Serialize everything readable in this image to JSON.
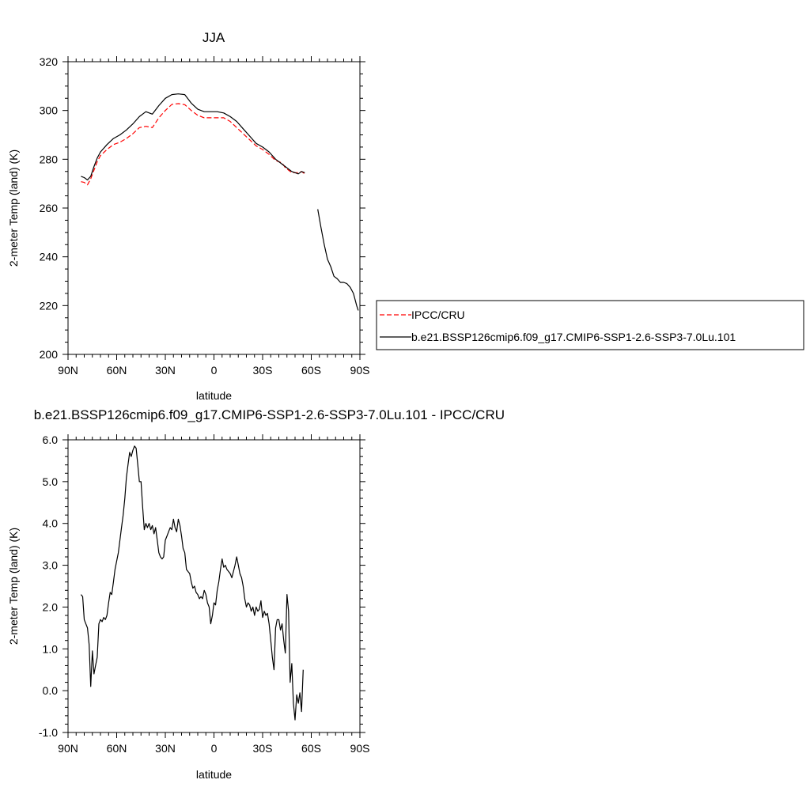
{
  "chart_data": [
    {
      "type": "line",
      "title": "JJA",
      "xlabel": "latitude",
      "ylabel": "2-meter Temp (land) (K)",
      "xlim": [
        90,
        -90
      ],
      "ylim": [
        200,
        320
      ],
      "x_tick_values": [
        90,
        60,
        30,
        0,
        -30,
        -60,
        -90
      ],
      "x_tick_labels": [
        "90N",
        "60N",
        "30N",
        "0",
        "30S",
        "60S",
        "90S"
      ],
      "y_tick_values": [
        200,
        220,
        240,
        260,
        280,
        300,
        320
      ],
      "y_tick_labels": [
        "200",
        "220",
        "240",
        "260",
        "280",
        "300",
        "320"
      ],
      "legend": {
        "placement": "right",
        "entries": [
          "IPCC/CRU",
          "b.e21.BSSP126cmip6.f09_g17.CMIP6-SSP1-2.6-SSP3-7.0Lu.101"
        ]
      },
      "series": [
        {
          "name": "IPCC/CRU",
          "color": "#ff0000",
          "dash": "dashed",
          "x": [
            82,
            80,
            78,
            76,
            74,
            72,
            70,
            66,
            62,
            58,
            54,
            50,
            46,
            42,
            38,
            34,
            30,
            26,
            22,
            18,
            14,
            10,
            6,
            2,
            -2,
            -6,
            -10,
            -14,
            -18,
            -22,
            -26,
            -30,
            -34,
            -38,
            -42,
            -44,
            -48,
            -52,
            -54,
            -56
          ],
          "y": [
            270.8,
            270.5,
            269.5,
            272,
            275.5,
            279,
            281.5,
            284,
            286,
            287,
            288.5,
            290.5,
            293,
            293.5,
            293,
            297,
            300,
            302.5,
            302.8,
            302.4,
            300,
            298,
            297,
            297,
            297,
            297,
            295.5,
            293,
            290.5,
            288,
            285.5,
            284,
            282,
            279.5,
            278.5,
            276.5,
            274.5,
            274.5,
            275,
            274
          ]
        },
        {
          "name": "b.e21.BSSP126cmip6.f09_g17.CMIP6-SSP1-2.6-SSP3-7.0Lu.101",
          "color": "#000000",
          "dash": "solid",
          "x": [
            82,
            80,
            78,
            76,
            74,
            72,
            70,
            66,
            62,
            58,
            54,
            50,
            46,
            42,
            38,
            34,
            30,
            26,
            22,
            18,
            14,
            10,
            6,
            2,
            -2,
            -6,
            -10,
            -14,
            -18,
            -22,
            -26,
            -30,
            -34,
            -38,
            -42,
            -44,
            -48,
            -52,
            -54,
            -56
          ],
          "y": [
            273,
            272.5,
            271.5,
            273,
            277,
            280.5,
            283,
            286,
            288.5,
            290,
            292,
            294.5,
            297.5,
            299.5,
            298.5,
            302,
            305,
            306.5,
            306.8,
            306.5,
            303,
            300.5,
            299.5,
            299.5,
            299.5,
            299,
            297.5,
            295.5,
            292.5,
            289.5,
            286.5,
            285,
            283,
            280,
            278,
            277,
            275,
            274,
            275,
            274.5
          ]
        },
        {
          "name": "b.e21.BSSP126cmip6.f09_g17.CMIP6-SSP1-2.6-SSP3-7.0Lu.101",
          "color": "#000000",
          "dash": "solid",
          "x": [
            -64,
            -66,
            -68,
            -70,
            -72,
            -74,
            -76,
            -78,
            -80,
            -82,
            -84,
            -86,
            -88,
            -89
          ],
          "y": [
            259.5,
            252,
            245,
            239,
            236,
            232,
            231,
            229.5,
            229.5,
            229,
            227.5,
            225,
            220,
            218
          ]
        }
      ]
    },
    {
      "type": "line",
      "title": "b.e21.BSSP126cmip6.f09_g17.CMIP6-SSP1-2.6-SSP3-7.0Lu.101 - IPCC/CRU",
      "xlabel": "latitude",
      "ylabel": "2-meter Temp (land) (K)",
      "xlim": [
        90,
        -90
      ],
      "ylim": [
        -1.0,
        6.0
      ],
      "x_tick_values": [
        90,
        60,
        30,
        0,
        -30,
        -60,
        -90
      ],
      "x_tick_labels": [
        "90N",
        "60N",
        "30N",
        "0",
        "30S",
        "60S",
        "90S"
      ],
      "y_tick_values": [
        -1,
        0,
        1,
        2,
        3,
        4,
        5,
        6
      ],
      "y_tick_labels": [
        "-1.0",
        "0.0",
        "1.0",
        "2.0",
        "3.0",
        "4.0",
        "5.0",
        "6.0"
      ],
      "series": [
        {
          "color": "#000000",
          "dash": "solid",
          "x": [
            82,
            81,
            80,
            79,
            78,
            77,
            76,
            75,
            74,
            73,
            72,
            71,
            70,
            69,
            68,
            67,
            66,
            65,
            64,
            63,
            62,
            61,
            60,
            59,
            58,
            57,
            56,
            55,
            54,
            53,
            52,
            51,
            50,
            49,
            48,
            47,
            46,
            45,
            44,
            43,
            42,
            41,
            40,
            39,
            38,
            37,
            36,
            35,
            34,
            33,
            32,
            31,
            30,
            29,
            28,
            27,
            26,
            25,
            24,
            23,
            22,
            21,
            20,
            19,
            18,
            17,
            16,
            15,
            14,
            13,
            12,
            11,
            10,
            9,
            8,
            7,
            6,
            5,
            4,
            3,
            2,
            1,
            0,
            -1,
            -2,
            -3,
            -4,
            -5,
            -6,
            -7,
            -8,
            -9,
            -10,
            -11,
            -12,
            -13,
            -14,
            -15,
            -16,
            -17,
            -18,
            -19,
            -20,
            -21,
            -22,
            -23,
            -24,
            -25,
            -26,
            -27,
            -28,
            -29,
            -30,
            -31,
            -32,
            -33,
            -34,
            -35,
            -36,
            -37,
            -38,
            -39,
            -40,
            -41,
            -42,
            -43,
            -44,
            -45,
            -46,
            -47,
            -48,
            -49,
            -50,
            -51,
            -52,
            -53,
            -54,
            -55
          ],
          "y": [
            2.3,
            2.25,
            1.7,
            1.6,
            1.5,
            1.1,
            0.1,
            0.95,
            0.4,
            0.6,
            0.8,
            1.6,
            1.7,
            1.65,
            1.75,
            1.7,
            1.8,
            2.1,
            2.35,
            2.3,
            2.6,
            2.9,
            3.1,
            3.3,
            3.6,
            3.9,
            4.2,
            4.6,
            5.1,
            5.4,
            5.7,
            5.6,
            5.75,
            5.85,
            5.8,
            5.4,
            5.0,
            5.0,
            4.4,
            3.85,
            4.0,
            3.9,
            4.0,
            3.85,
            3.95,
            3.75,
            3.9,
            3.6,
            3.3,
            3.2,
            3.15,
            3.2,
            3.6,
            3.7,
            3.8,
            3.9,
            3.85,
            4.1,
            3.9,
            3.8,
            4.1,
            3.95,
            3.7,
            3.4,
            3.3,
            2.9,
            2.85,
            2.8,
            2.6,
            2.45,
            2.5,
            2.35,
            2.3,
            2.2,
            2.25,
            2.2,
            2.4,
            2.3,
            2.1,
            2.0,
            1.6,
            1.8,
            2.1,
            2.05,
            2.4,
            2.6,
            2.9,
            3.15,
            2.95,
            3.0,
            2.9,
            2.85,
            2.8,
            2.7,
            2.85,
            3.0,
            3.2,
            3.0,
            2.8,
            2.7,
            2.5,
            2.2,
            2.0,
            2.1,
            2.05,
            1.9,
            2.0,
            1.8,
            2.0,
            1.9,
            1.95,
            2.15,
            1.75,
            1.9,
            1.8,
            1.85,
            1.6,
            1.2,
            0.8,
            0.5,
            1.5,
            1.7,
            1.7,
            1.45,
            1.6,
            1.2,
            0.9,
            2.3,
            1.9,
            0.2,
            0.65,
            -0.3,
            -0.7,
            -0.1,
            -0.3,
            -0.05,
            -0.5,
            0.5
          ]
        }
      ]
    }
  ]
}
